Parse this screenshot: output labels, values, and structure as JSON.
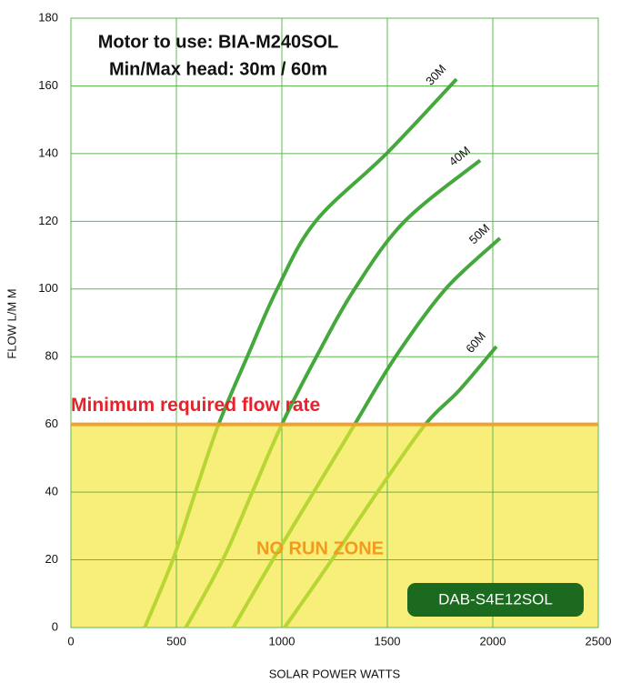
{
  "chart_data": {
    "type": "line",
    "title_lines": [
      "Motor to use: BIA-M240SOL",
      "Min/Max head: 30m / 60m"
    ],
    "xlabel": "SOLAR POWER WATTS",
    "ylabel": "FLOW L/M M",
    "threshold": 60,
    "threshold_label": "Minimum required flow rate",
    "zone_label": "NO RUN ZONE",
    "badge": "DAB-S4E12SOL",
    "xlim": [
      0,
      2500
    ],
    "xticks": [
      0,
      500,
      1000,
      1500,
      2000,
      2500
    ],
    "ylim": [
      0,
      180
    ],
    "yticks": [
      0,
      20,
      40,
      60,
      80,
      100,
      120,
      140,
      160,
      180
    ],
    "grid": true,
    "color_high": "#45a83c",
    "color_low": "#b8d633",
    "series": [
      {
        "name": "30M",
        "x": [
          350,
          483,
          590,
          700,
          836,
          978,
          1160,
          1496,
          1828
        ],
        "values": [
          0,
          20,
          40,
          60,
          80,
          100,
          120,
          140,
          162
        ]
      },
      {
        "name": "40M",
        "x": [
          545,
          720,
          860,
          1000,
          1164,
          1345,
          1582,
          1940
        ],
        "values": [
          0,
          20,
          40,
          60,
          80,
          100,
          120,
          138
        ]
      },
      {
        "name": "50M",
        "x": [
          770,
          957,
          1151,
          1345,
          1539,
          1776,
          2034
        ],
        "values": [
          0,
          20,
          40,
          60,
          80,
          100,
          115
        ]
      },
      {
        "name": "60M",
        "x": [
          1013,
          1237,
          1453,
          1680,
          1840,
          2017
        ],
        "values": [
          0,
          20,
          40,
          60,
          70,
          83
        ]
      }
    ]
  }
}
